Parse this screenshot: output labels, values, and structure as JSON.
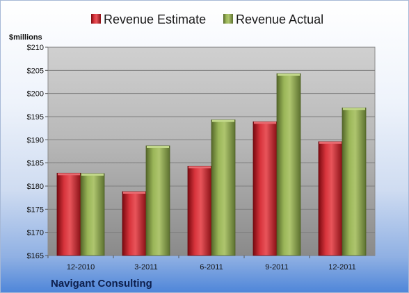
{
  "chart_data": {
    "type": "bar",
    "ylabel": "$millions",
    "ylim": [
      165,
      210
    ],
    "ytick_step": 5,
    "y_prefix": "$",
    "categories": [
      "12-2010",
      "3-2011",
      "6-2011",
      "9-2011",
      "12-2011"
    ],
    "series": [
      {
        "name": "Revenue Estimate",
        "color": "#c0202a",
        "values": [
          182.8,
          178.8,
          184.3,
          193.9,
          189.6
        ]
      },
      {
        "name": "Revenue Actual",
        "color": "#8aa64a",
        "values": [
          182.7,
          188.7,
          194.3,
          204.3,
          196.9
        ]
      }
    ],
    "legend_position": "top",
    "grid": true,
    "company": "Navigant Consulting"
  }
}
